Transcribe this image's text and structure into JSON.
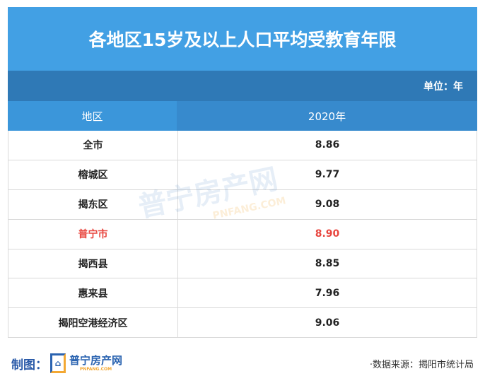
{
  "title": "各地区15岁及以上人口平均受教育年限",
  "unit": "单位：年",
  "headers": {
    "region": "地区",
    "year": "2020年"
  },
  "rows": [
    {
      "region": "全市",
      "value": "8.86"
    },
    {
      "region": "榕城区",
      "value": "9.77"
    },
    {
      "region": "揭东区",
      "value": "9.08"
    },
    {
      "region": "普宁市",
      "value": "8.90",
      "highlight": true
    },
    {
      "region": "揭西县",
      "value": "8.85"
    },
    {
      "region": "惠来县",
      "value": "7.96"
    },
    {
      "region": "揭阳空港经济区",
      "value": "9.06"
    }
  ],
  "watermark": {
    "name": "普宁房产网",
    "domain": "PNFANG.COM"
  },
  "footer": {
    "maker_label": "制图：",
    "logo_name": "普宁房产网",
    "logo_domain": "PNFANG.COM",
    "source": "·数据来源：揭阳市统计局"
  },
  "colors": {
    "title_bg": "#42a0e4",
    "unit_bg": "#2f79b6",
    "highlight": "#e8463f"
  }
}
